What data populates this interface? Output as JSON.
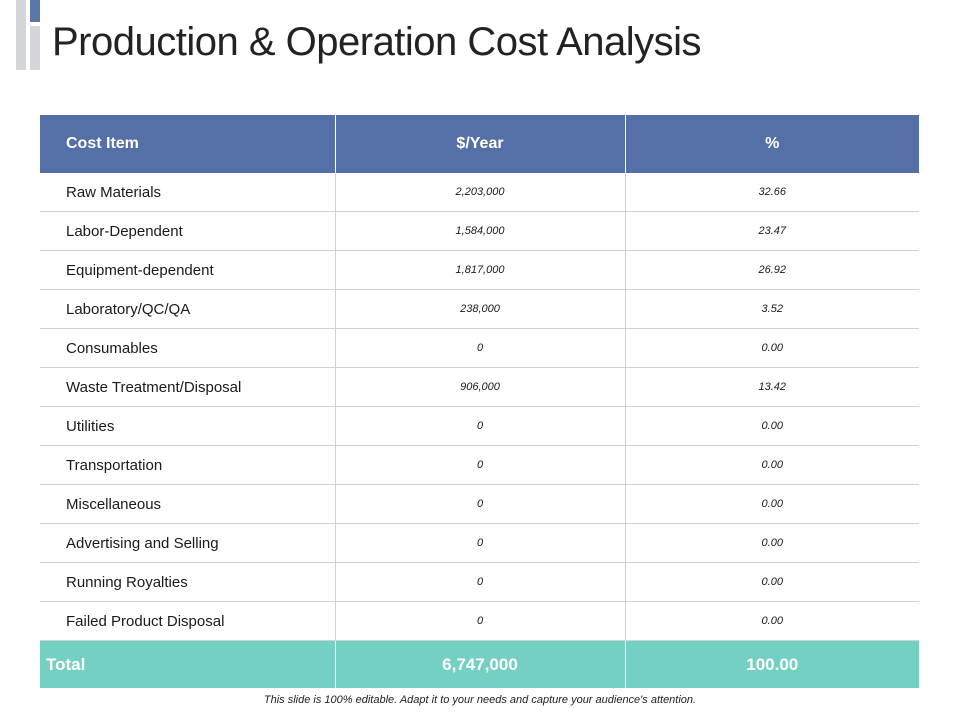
{
  "slide": {
    "title": "Production & Operation Cost Analysis",
    "footnote": "This slide is 100% editable. Adapt it to your needs and capture your audience's attention."
  },
  "colors": {
    "header_bg": "#5570a6",
    "total_bg": "#74d0c2",
    "accent_bar": "#5b76a9",
    "grey_bar": "#d4d6da"
  },
  "table": {
    "headers": [
      "Cost Item",
      "$/Year",
      "%"
    ],
    "rows": [
      [
        "Raw Materials",
        "2,203,000",
        "32.66"
      ],
      [
        "Labor-Dependent",
        "1,584,000",
        "23.47"
      ],
      [
        "Equipment-dependent",
        "1,817,000",
        "26.92"
      ],
      [
        "Laboratory/QC/QA",
        "238,000",
        "3.52"
      ],
      [
        "Consumables",
        "0",
        "0.00"
      ],
      [
        "Waste Treatment/Disposal",
        "906,000",
        "13.42"
      ],
      [
        "Utilities",
        "0",
        "0.00"
      ],
      [
        "Transportation",
        "0",
        "0.00"
      ],
      [
        "Miscellaneous",
        "0",
        "0.00"
      ],
      [
        "Advertising and Selling",
        "0",
        "0.00"
      ],
      [
        "Running  Royalties",
        "0",
        "0.00"
      ],
      [
        "Failed Product Disposal",
        "0",
        "0.00"
      ]
    ],
    "total": [
      "Total",
      "6,747,000",
      "100.00"
    ]
  }
}
